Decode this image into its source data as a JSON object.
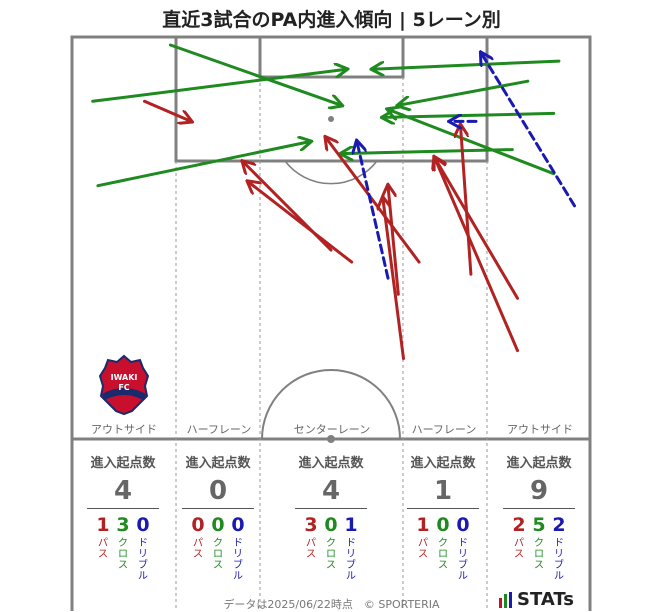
{
  "title": "直近3試合のPA内進入傾向 | 5レーン別",
  "lanes": [
    {
      "label": "アウトサイド",
      "head": "進入起点数",
      "total": "4",
      "pass": "1",
      "cross": "3",
      "dribble": "0"
    },
    {
      "label": "ハーフレーン",
      "head": "進入起点数",
      "total": "0",
      "pass": "0",
      "cross": "0",
      "dribble": "0"
    },
    {
      "label": "センターレーン",
      "head": "進入起点数",
      "total": "4",
      "pass": "3",
      "cross": "0",
      "dribble": "1"
    },
    {
      "label": "ハーフレーン",
      "head": "進入起点数",
      "total": "1",
      "pass": "1",
      "cross": "0",
      "dribble": "0"
    },
    {
      "label": "アウトサイド",
      "head": "進入起点数",
      "total": "9",
      "pass": "2",
      "cross": "5",
      "dribble": "2"
    }
  ],
  "legend": {
    "pass": "パス",
    "cross": "クロス",
    "dribble": "ドリブル"
  },
  "footer": "データは2025/06/22時点　© SPORTERIA",
  "brand": "STATs",
  "crest_text": "IWAKI FC",
  "colors": {
    "pass": "#b22222",
    "cross": "#1f8a1f",
    "dribble": "#1a1ab0",
    "pitch_line": "#808080"
  },
  "chart_data": {
    "type": "arrow-map",
    "units": "pitch coordinates (x: 0=left touchline, 100=right touchline; y: 0=goal line, 100=halfway line)",
    "arrows": [
      {
        "kind": "cross",
        "from": [
          4,
          16
        ],
        "to": [
          53,
          8
        ]
      },
      {
        "kind": "cross",
        "from": [
          5,
          37
        ],
        "to": [
          46,
          26
        ]
      },
      {
        "kind": "cross",
        "from": [
          19,
          2
        ],
        "to": [
          52,
          17
        ]
      },
      {
        "kind": "cross",
        "from": [
          93,
          19
        ],
        "to": [
          60,
          20
        ]
      },
      {
        "kind": "cross",
        "from": [
          94,
          6
        ],
        "to": [
          58,
          8
        ]
      },
      {
        "kind": "cross",
        "from": [
          88,
          11
        ],
        "to": [
          63,
          17
        ]
      },
      {
        "kind": "cross",
        "from": [
          93,
          34
        ],
        "to": [
          61,
          18
        ]
      },
      {
        "kind": "cross",
        "from": [
          85,
          28
        ],
        "to": [
          52,
          29
        ]
      },
      {
        "kind": "pass",
        "from": [
          14,
          16
        ],
        "to": [
          23,
          21
        ]
      },
      {
        "kind": "pass",
        "from": [
          50,
          53
        ],
        "to": [
          33,
          31
        ]
      },
      {
        "kind": "pass",
        "from": [
          54,
          56
        ],
        "to": [
          34,
          36
        ]
      },
      {
        "kind": "pass",
        "from": [
          63,
          64
        ],
        "to": [
          61,
          37
        ]
      },
      {
        "kind": "pass",
        "from": [
          67,
          56
        ],
        "to": [
          49,
          25
        ]
      },
      {
        "kind": "pass",
        "from": [
          86,
          65
        ],
        "to": [
          70,
          30
        ]
      },
      {
        "kind": "pass",
        "from": [
          77,
          59
        ],
        "to": [
          75,
          22
        ]
      },
      {
        "kind": "pass",
        "from": [
          86,
          78
        ],
        "to": [
          70,
          30
        ]
      },
      {
        "kind": "pass",
        "from": [
          64,
          80
        ],
        "to": [
          60,
          40
        ]
      },
      {
        "kind": "dribble",
        "from": [
          97,
          42
        ],
        "to": [
          79,
          4
        ]
      },
      {
        "kind": "dribble",
        "from": [
          78,
          21
        ],
        "to": [
          73,
          21
        ]
      },
      {
        "kind": "dribble",
        "from": [
          61,
          60
        ],
        "to": [
          55,
          26
        ]
      }
    ]
  }
}
